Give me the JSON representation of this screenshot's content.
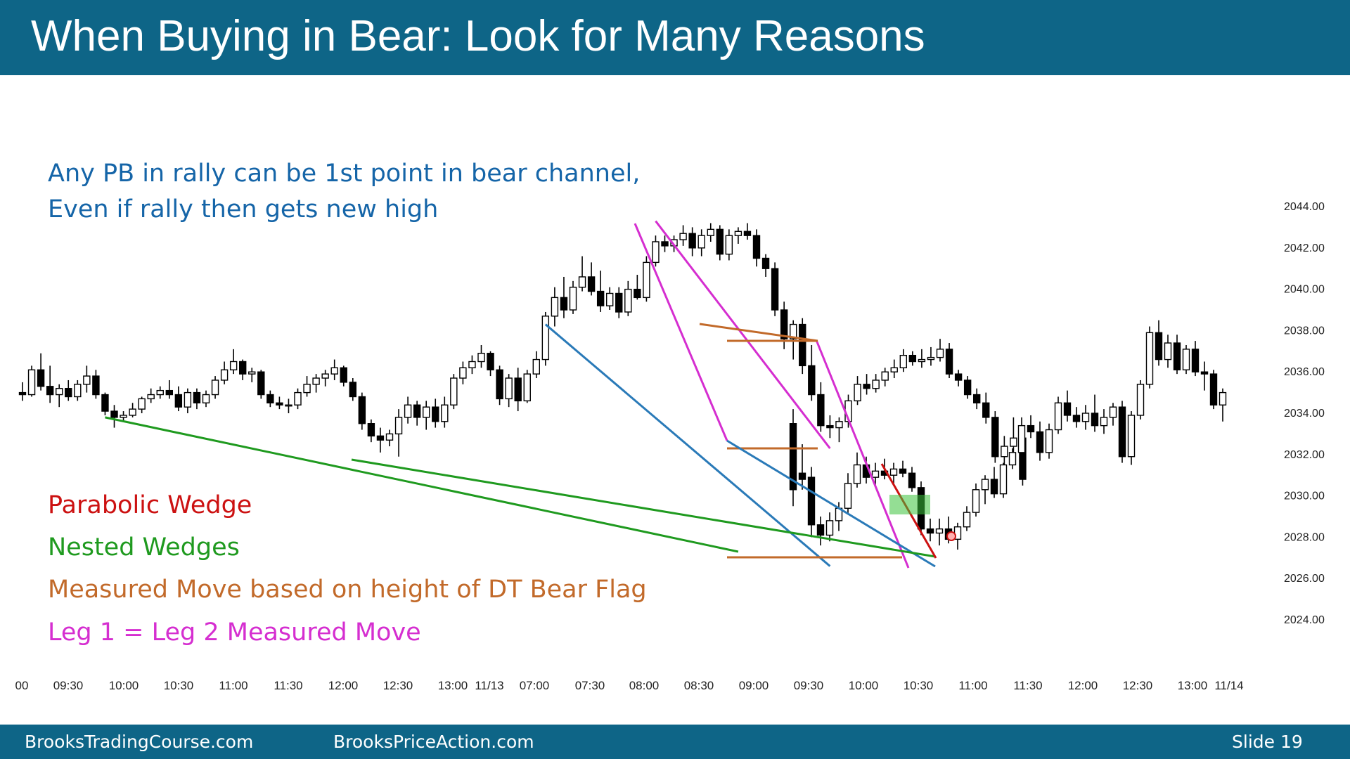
{
  "header": {
    "title": "When Buying in Bear: Look for Many Reasons"
  },
  "footer": {
    "site1": "BrooksTradingCourse.com",
    "site2": "BrooksPriceAction.com",
    "slide": "Slide  19"
  },
  "colors": {
    "header_bg": "#0e6587",
    "note_blue": "#1565a8",
    "red": "#cc1111",
    "green": "#1f9a1f",
    "orange": "#c26a2a",
    "magenta": "#d52ed0",
    "trend_blue": "#2a7ab8"
  },
  "annotations": {
    "note_line1": "Any PB in rally can be 1st point in bear channel,",
    "note_line2": "Even if rally then gets new high",
    "legend": [
      {
        "text": "Parabolic Wedge",
        "color": "#cc1111"
      },
      {
        "text": "Nested Wedges",
        "color": "#1f9a1f"
      },
      {
        "text": "Measured Move based on height of DT Bear Flag",
        "color": "#c26a2a"
      },
      {
        "text": "Leg 1 = Leg 2 Measured Move",
        "color": "#d52ed0"
      }
    ]
  },
  "chart_data": {
    "type": "candlestick",
    "title": "",
    "xlabel": "",
    "ylabel": "",
    "y_axis_side": "right",
    "ylim": [
      2022.6,
      2045.6
    ],
    "yticks": [
      "2044.00",
      "2042.00",
      "2040.00",
      "2038.00",
      "2036.00",
      "2034.00",
      "2032.00",
      "2030.00",
      "2028.00",
      "2026.00",
      "2024.00"
    ],
    "x_tick_labels": [
      "00",
      "09:30",
      "10:00",
      "10:30",
      "11:00",
      "11:30",
      "12:00",
      "12:30",
      "13:00",
      "11/13",
      "07:00",
      "07:30",
      "08:00",
      "08:30",
      "09:00",
      "09:30",
      "10:00",
      "10:30",
      "11:00",
      "11:30",
      "12:00",
      "12:30",
      "13:00",
      "11/14"
    ],
    "bar_count": 110,
    "ohlc": [
      [
        2035.0,
        2035.5,
        2034.6,
        2034.9
      ],
      [
        2034.9,
        2036.3,
        2034.8,
        2036.1
      ],
      [
        2036.1,
        2036.9,
        2035.1,
        2035.3
      ],
      [
        2035.3,
        2036.3,
        2034.5,
        2034.9
      ],
      [
        2034.9,
        2035.4,
        2034.3,
        2035.2
      ],
      [
        2035.2,
        2035.6,
        2034.6,
        2034.8
      ],
      [
        2034.8,
        2035.6,
        2034.6,
        2035.4
      ],
      [
        2035.4,
        2036.3,
        2035.0,
        2035.8
      ],
      [
        2035.8,
        2036.1,
        2034.7,
        2034.9
      ],
      [
        2034.9,
        2035.0,
        2033.9,
        2034.1
      ],
      [
        2034.1,
        2034.4,
        2033.3,
        2033.8
      ],
      [
        2033.8,
        2034.1,
        2033.6,
        2033.9
      ],
      [
        2033.9,
        2034.5,
        2033.8,
        2034.2
      ],
      [
        2034.2,
        2034.8,
        2034.0,
        2034.7
      ],
      [
        2034.7,
        2035.2,
        2034.5,
        2034.9
      ],
      [
        2034.9,
        2035.3,
        2034.7,
        2035.1
      ],
      [
        2035.1,
        2035.6,
        2034.7,
        2034.9
      ],
      [
        2034.9,
        2035.3,
        2034.1,
        2034.3
      ],
      [
        2034.3,
        2035.2,
        2034.0,
        2035.0
      ],
      [
        2035.0,
        2035.2,
        2034.2,
        2034.5
      ],
      [
        2034.5,
        2035.1,
        2034.3,
        2034.9
      ],
      [
        2034.9,
        2035.8,
        2034.7,
        2035.6
      ],
      [
        2035.6,
        2036.5,
        2035.4,
        2036.1
      ],
      [
        2036.1,
        2037.1,
        2035.9,
        2036.5
      ],
      [
        2036.5,
        2036.6,
        2035.6,
        2035.9
      ],
      [
        2035.9,
        2036.2,
        2035.5,
        2036.0
      ],
      [
        2036.0,
        2036.1,
        2034.7,
        2034.9
      ],
      [
        2034.9,
        2035.1,
        2034.3,
        2034.5
      ],
      [
        2034.5,
        2034.8,
        2034.2,
        2034.4
      ],
      [
        2034.4,
        2034.7,
        2034.0,
        2034.4
      ],
      [
        2034.4,
        2035.2,
        2034.2,
        2035.0
      ],
      [
        2035.0,
        2035.8,
        2034.8,
        2035.4
      ],
      [
        2035.4,
        2035.9,
        2035.0,
        2035.7
      ],
      [
        2035.7,
        2036.1,
        2035.3,
        2035.9
      ],
      [
        2035.9,
        2036.6,
        2035.6,
        2036.2
      ],
      [
        2036.2,
        2036.3,
        2035.3,
        2035.5
      ],
      [
        2035.5,
        2035.7,
        2034.6,
        2034.8
      ],
      [
        2034.8,
        2035.0,
        2033.2,
        2033.5
      ],
      [
        2033.5,
        2033.7,
        2032.6,
        2032.9
      ],
      [
        2032.9,
        2033.3,
        2032.1,
        2032.7
      ],
      [
        2032.7,
        2033.2,
        2032.4,
        2033.0
      ],
      [
        2033.0,
        2034.2,
        2031.9,
        2033.8
      ],
      [
        2033.8,
        2034.8,
        2033.5,
        2034.4
      ],
      [
        2034.4,
        2034.6,
        2033.4,
        2033.8
      ],
      [
        2033.8,
        2034.6,
        2033.2,
        2034.3
      ],
      [
        2034.3,
        2034.7,
        2033.3,
        2033.6
      ],
      [
        2033.6,
        2034.8,
        2033.3,
        2034.4
      ],
      [
        2034.4,
        2035.9,
        2034.2,
        2035.7
      ],
      [
        2035.7,
        2036.5,
        2035.4,
        2036.2
      ],
      [
        2036.2,
        2036.8,
        2035.9,
        2036.5
      ],
      [
        2036.5,
        2037.3,
        2036.2,
        2036.9
      ],
      [
        2036.9,
        2037.0,
        2035.8,
        2036.1
      ],
      [
        2036.1,
        2036.3,
        2034.4,
        2034.7
      ],
      [
        2034.7,
        2035.9,
        2034.3,
        2035.7
      ],
      [
        2035.7,
        2036.2,
        2034.1,
        2034.6
      ],
      [
        2034.6,
        2036.1,
        2034.5,
        2035.9
      ],
      [
        2035.9,
        2037.0,
        2035.7,
        2036.6
      ],
      [
        2036.6,
        2038.9,
        2036.3,
        2038.7
      ],
      [
        2038.7,
        2040.1,
        2038.2,
        2039.6
      ],
      [
        2039.6,
        2040.6,
        2038.6,
        2039.0
      ],
      [
        2039.0,
        2040.4,
        2038.8,
        2040.1
      ],
      [
        2040.1,
        2041.6,
        2039.9,
        2040.6
      ],
      [
        2040.6,
        2041.3,
        2039.7,
        2039.9
      ],
      [
        2039.9,
        2040.9,
        2038.9,
        2039.2
      ],
      [
        2039.2,
        2040.1,
        2039.0,
        2039.8
      ],
      [
        2039.8,
        2040.1,
        2038.6,
        2038.9
      ],
      [
        2038.9,
        2040.4,
        2038.7,
        2040.0
      ],
      [
        2040.0,
        2040.7,
        2039.5,
        2039.6
      ],
      [
        2039.6,
        2041.6,
        2039.4,
        2041.3
      ],
      [
        2041.3,
        2042.6,
        2041.1,
        2042.3
      ],
      [
        2042.3,
        2042.6,
        2041.8,
        2042.1
      ],
      [
        2042.1,
        2042.6,
        2041.8,
        2042.4
      ],
      [
        2042.4,
        2043.1,
        2042.1,
        2042.7
      ],
      [
        2042.7,
        2043.0,
        2041.6,
        2042.0
      ],
      [
        2042.0,
        2042.9,
        2041.6,
        2042.6
      ],
      [
        2042.6,
        2043.2,
        2042.3,
        2042.9
      ],
      [
        2042.9,
        2043.1,
        2041.4,
        2041.7
      ],
      [
        2041.7,
        2042.9,
        2041.4,
        2042.6
      ],
      [
        2042.6,
        2043.0,
        2042.2,
        2042.8
      ],
      [
        2042.8,
        2043.2,
        2042.4,
        2042.6
      ],
      [
        2042.6,
        2042.9,
        2041.1,
        2041.5
      ],
      [
        2041.5,
        2041.7,
        2040.6,
        2041.0
      ],
      [
        2041.0,
        2041.3,
        2038.7,
        2039.0
      ],
      [
        2039.0,
        2039.4,
        2037.1,
        2037.6
      ],
      [
        2037.6,
        2038.5,
        2036.6,
        2038.3
      ],
      [
        2038.3,
        2038.6,
        2035.9,
        2036.3
      ],
      [
        2036.3,
        2037.3,
        2034.6,
        2034.9
      ],
      [
        2034.9,
        2035.5,
        2033.1,
        2033.4
      ],
      [
        2033.4,
        2033.9,
        2032.8,
        2033.3
      ],
      [
        2033.3,
        2033.8,
        2032.6,
        2033.6
      ],
      [
        2033.6,
        2034.9,
        2033.3,
        2034.6
      ],
      [
        2034.6,
        2035.8,
        2034.4,
        2035.4
      ],
      [
        2035.4,
        2035.9,
        2034.9,
        2035.2
      ],
      [
        2035.2,
        2035.9,
        2035.0,
        2035.6
      ],
      [
        2035.6,
        2036.2,
        2035.3,
        2036.0
      ],
      [
        2036.0,
        2036.6,
        2035.7,
        2036.2
      ],
      [
        2036.2,
        2037.1,
        2036.0,
        2036.8
      ],
      [
        2036.8,
        2037.0,
        2036.3,
        2036.5
      ],
      [
        2036.5,
        2037.1,
        2036.2,
        2036.6
      ],
      [
        2036.6,
        2037.2,
        2036.3,
        2036.7
      ],
      [
        2036.7,
        2037.6,
        2036.5,
        2037.1
      ],
      [
        2037.1,
        2037.4,
        2035.7,
        2035.9
      ],
      [
        2035.9,
        2036.1,
        2035.3,
        2035.6
      ],
      [
        2035.6,
        2035.8,
        2034.7,
        2034.9
      ],
      [
        2034.9,
        2035.2,
        2034.2,
        2034.5
      ],
      [
        2034.5,
        2035.0,
        2033.5,
        2033.8
      ],
      [
        2033.8,
        2034.1,
        2031.6,
        2031.9
      ],
      [
        2031.9,
        2032.9,
        2031.5,
        2032.4
      ],
      [
        2032.4,
        2033.8,
        2031.8,
        2032.8
      ],
      [
        2032.8,
        2033.4,
        2030.5,
        2030.8
      ]
    ],
    "lines": [
      {
        "name": "",
        "color": "#1f9a1f",
        "from": [
          9,
          2033.8
        ],
        "to": [
          78,
          2027.3
        ]
      },
      {
        "name": "",
        "color": "#2a7ab8",
        "from": [
          57,
          2038.3
        ],
        "to": [
          88,
          2026.6
        ]
      },
      {
        "name": "",
        "color": "#d52ed0",
        "from": [
          69,
          2043.3
        ],
        "to": [
          88,
          2032.3
        ]
      }
    ]
  }
}
